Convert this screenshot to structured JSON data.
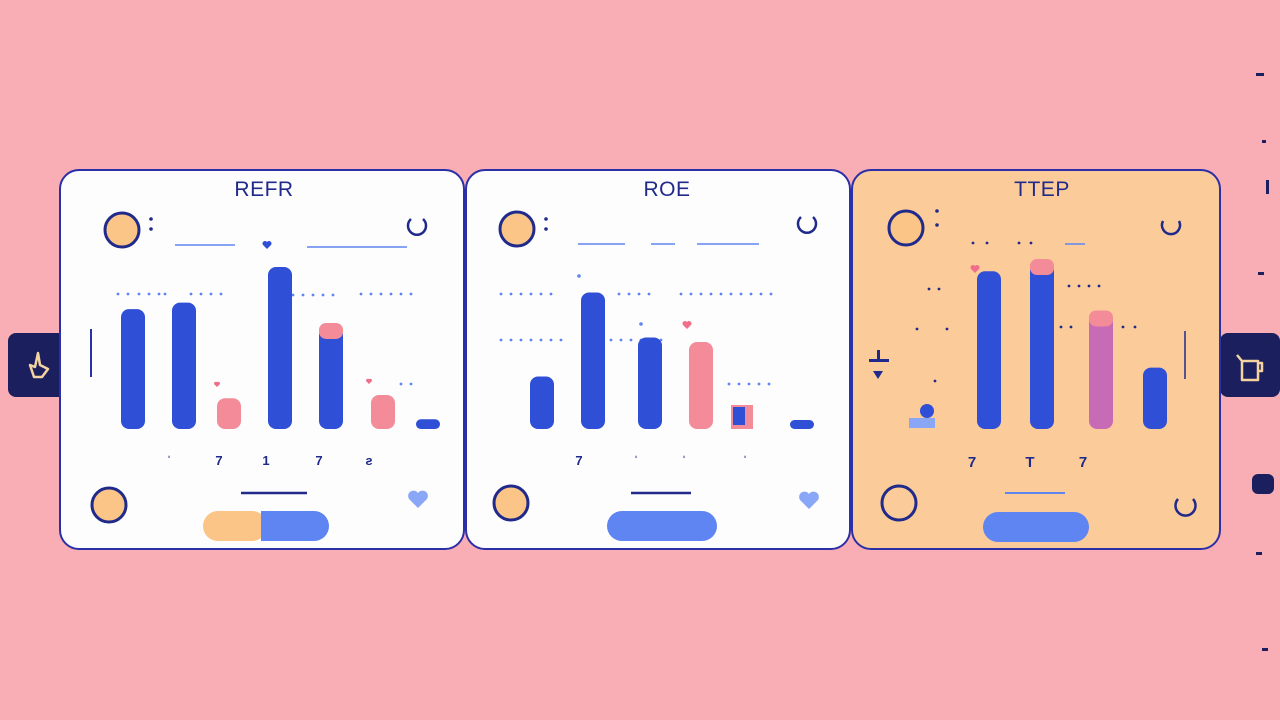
{
  "colors": {
    "background": "#f9adb4",
    "card_white": "#fdfdfd",
    "card_peach": "#fccb9a",
    "border": "#2b2fa8",
    "bar_blue": "#2f4fd6",
    "bar_pink": "#f38c98",
    "bar_purple": "#c76bb7",
    "accent_peach": "#fbc587",
    "pill_blue": "#5e85f2",
    "nav_dark": "#1c1f5e"
  },
  "cards": [
    {
      "title": "REFR",
      "tick_labels": [
        "ˈ",
        "7",
        "1",
        "7",
        "ƨ"
      ],
      "bars": [
        {
          "value": 0.74,
          "color": "bar_blue"
        },
        {
          "value": 0.78,
          "color": "bar_blue"
        },
        {
          "value": 0.19,
          "color": "bar_pink"
        },
        {
          "value": 1.0,
          "color": "bar_blue"
        },
        {
          "value": 0.63,
          "color": "bar_blue",
          "cap": "bar_pink"
        },
        {
          "value": 0.21,
          "color": "bar_pink"
        },
        {
          "value": 0.06,
          "color": "bar_blue"
        }
      ],
      "footer_pill": "split",
      "footer_icon": "heart-icon"
    },
    {
      "title": "ROE",
      "tick_labels": [
        "7",
        "ˈ",
        "ˈ",
        "ˈ"
      ],
      "bars": [
        {
          "value": 0.35,
          "color": "bar_blue"
        },
        {
          "value": 0.91,
          "color": "bar_blue"
        },
        {
          "value": 0.61,
          "color": "bar_blue"
        },
        {
          "value": 0.58,
          "color": "bar_pink"
        },
        {
          "value": 0.06,
          "color": "bar_blue"
        }
      ],
      "footer_pill": "blue",
      "footer_icon": "heart-icon"
    },
    {
      "title": "TTEP",
      "tick_labels": [
        "7",
        "T",
        "7"
      ],
      "bars": [
        {
          "value": 0.95,
          "color": "bar_blue"
        },
        {
          "value": 1.0,
          "color": "bar_blue",
          "cap": "bar_pink"
        },
        {
          "value": 0.69,
          "color": "bar_purple",
          "cap": "bar_pink"
        },
        {
          "value": 0.37,
          "color": "bar_blue"
        }
      ],
      "footer_pill": "blue",
      "footer_icon": "refresh-icon"
    }
  ],
  "nav": {
    "left_icon": "pointer-hand-icon",
    "right_icon": "cup-icon"
  }
}
